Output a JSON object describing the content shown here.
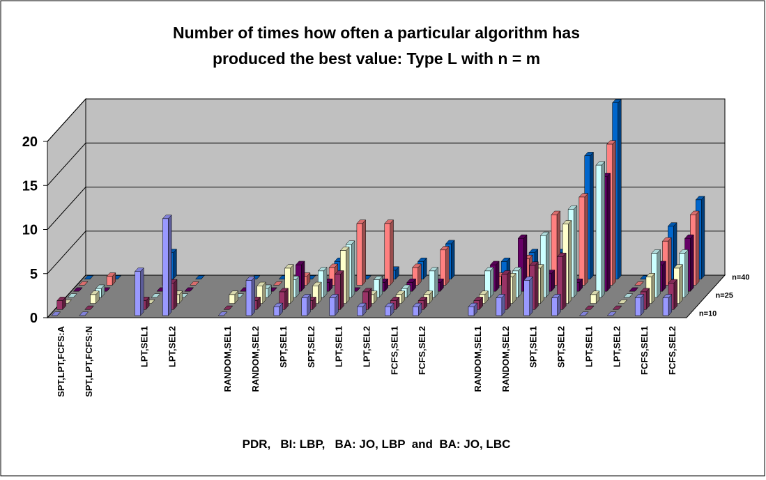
{
  "chart_data": {
    "type": "bar3d",
    "title": [
      "Number of times how often a particular algorithm has",
      "produced the best value: Type L with n = m"
    ],
    "x_label": "PDR,   BI: LBP,   BA: JO, LBP  and  BA: JO, LBC",
    "categories": [
      "SPT,LPT,FCFS:A",
      "SPT,LPT,FCFS:N",
      null,
      "LPT,SEL1",
      "LPT,SEL2",
      null,
      "RANDOM,SEL1",
      "RANDOM,SEL2",
      "SPT,SEL1",
      "SPT,SEL2",
      "LPT,SEL1",
      "LPT,SEL2",
      "FCFS,SEL1",
      "FCFS,SEL2",
      null,
      "RANDOM,SEL1",
      "RANDOM,SEL2",
      "SPT,SEL1",
      "SPT,SEL2",
      "LPT,SEL1",
      "LPT,SEL2",
      "FCFS,SEL1",
      "FCFS,SEL2"
    ],
    "series": [
      {
        "name": "n=10",
        "color": "#9999FF",
        "values": [
          0,
          0,
          null,
          5,
          11,
          null,
          0,
          4,
          1,
          2,
          2,
          1,
          1,
          1,
          null,
          1,
          2,
          4,
          2,
          0,
          0,
          2,
          2
        ]
      },
      {
        "name": null,
        "color": "#993366",
        "values": [
          1,
          0,
          null,
          1,
          3,
          null,
          0,
          1,
          2,
          1,
          4,
          2,
          1,
          1,
          null,
          1,
          4,
          5,
          6,
          0,
          0,
          2,
          3
        ]
      },
      {
        "name": null,
        "color": "#FFFFCC",
        "values": [
          0,
          1,
          null,
          0,
          1,
          null,
          1,
          2,
          4,
          2,
          6,
          1,
          1,
          1,
          null,
          1,
          3,
          4,
          9,
          1,
          0,
          3,
          4
        ]
      },
      {
        "name": "n=25",
        "color": "#CCFFFF",
        "values": [
          0,
          1,
          null,
          0,
          0,
          null,
          0,
          1,
          2,
          3,
          6,
          2,
          1,
          3,
          null,
          3,
          3,
          7,
          10,
          15,
          0,
          5,
          5
        ]
      },
      {
        "name": null,
        "color": "#660066",
        "values": [
          0,
          0,
          null,
          0,
          0,
          null,
          0,
          0,
          3,
          1,
          0,
          1,
          1,
          1,
          null,
          3,
          6,
          2,
          1,
          13,
          0,
          3,
          6
        ]
      },
      {
        "name": null,
        "color": "#FF8080",
        "values": [
          0,
          1,
          null,
          1,
          0,
          null,
          0,
          0,
          1,
          2,
          7,
          7,
          2,
          4,
          null,
          1,
          3,
          8,
          10,
          16,
          0,
          5,
          8
        ]
      },
      {
        "name": "n=40",
        "color": "#0066CC",
        "values": [
          0,
          0,
          null,
          3,
          0,
          null,
          0,
          0,
          0,
          2,
          0,
          1,
          2,
          4,
          null,
          2,
          3,
          3,
          14,
          20,
          0,
          6,
          9
        ]
      }
    ],
    "ylim": [
      0,
      20
    ],
    "yticks": [
      0,
      5,
      10,
      15,
      20
    ],
    "grid": true
  }
}
